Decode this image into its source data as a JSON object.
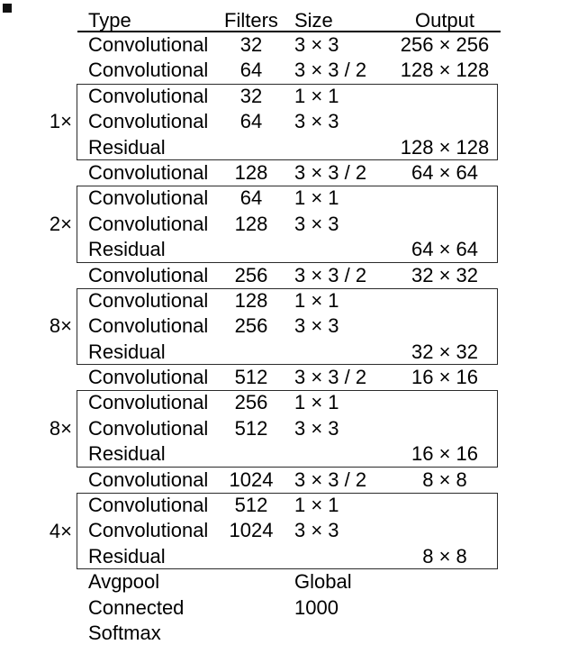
{
  "page": {
    "background": "#ffffff",
    "text_color": "#000000",
    "box_border_color": "#2b2b2b",
    "corner_artifact_color": "#111111"
  },
  "table": {
    "headers": {
      "type": "Type",
      "filters": "Filters",
      "size": "Size",
      "output": "Output"
    },
    "sections": [
      {
        "multiplier": "",
        "rows": [
          {
            "type": "Convolutional",
            "filters": "32",
            "size": "3 × 3",
            "output": "256 × 256"
          },
          {
            "type": "Convolutional",
            "filters": "64",
            "size": "3 × 3 / 2",
            "output": "128 × 128"
          }
        ]
      },
      {
        "multiplier": "1×",
        "rows": [
          {
            "type": "Convolutional",
            "filters": "32",
            "size": "1 × 1",
            "output": ""
          },
          {
            "type": "Convolutional",
            "filters": "64",
            "size": "3 × 3",
            "output": ""
          },
          {
            "type": "Residual",
            "filters": "",
            "size": "",
            "output": "128 × 128"
          }
        ]
      },
      {
        "multiplier": "",
        "rows": [
          {
            "type": "Convolutional",
            "filters": "128",
            "size": "3 × 3 / 2",
            "output": "64 × 64"
          }
        ]
      },
      {
        "multiplier": "2×",
        "rows": [
          {
            "type": "Convolutional",
            "filters": "64",
            "size": "1 × 1",
            "output": ""
          },
          {
            "type": "Convolutional",
            "filters": "128",
            "size": "3 × 3",
            "output": ""
          },
          {
            "type": "Residual",
            "filters": "",
            "size": "",
            "output": "64 × 64"
          }
        ]
      },
      {
        "multiplier": "",
        "rows": [
          {
            "type": "Convolutional",
            "filters": "256",
            "size": "3 × 3 / 2",
            "output": "32 × 32"
          }
        ]
      },
      {
        "multiplier": "8×",
        "rows": [
          {
            "type": "Convolutional",
            "filters": "128",
            "size": "1 × 1",
            "output": ""
          },
          {
            "type": "Convolutional",
            "filters": "256",
            "size": "3 × 3",
            "output": ""
          },
          {
            "type": "Residual",
            "filters": "",
            "size": "",
            "output": "32 × 32"
          }
        ]
      },
      {
        "multiplier": "",
        "rows": [
          {
            "type": "Convolutional",
            "filters": "512",
            "size": "3 × 3 / 2",
            "output": "16 × 16"
          }
        ]
      },
      {
        "multiplier": "8×",
        "rows": [
          {
            "type": "Convolutional",
            "filters": "256",
            "size": "1 × 1",
            "output": ""
          },
          {
            "type": "Convolutional",
            "filters": "512",
            "size": "3 × 3",
            "output": ""
          },
          {
            "type": "Residual",
            "filters": "",
            "size": "",
            "output": "16 × 16"
          }
        ]
      },
      {
        "multiplier": "",
        "rows": [
          {
            "type": "Convolutional",
            "filters": "1024",
            "size": "3 × 3 / 2",
            "output": "8 × 8"
          }
        ]
      },
      {
        "multiplier": "4×",
        "rows": [
          {
            "type": "Convolutional",
            "filters": "512",
            "size": "1 × 1",
            "output": ""
          },
          {
            "type": "Convolutional",
            "filters": "1024",
            "size": "3 × 3",
            "output": ""
          },
          {
            "type": "Residual",
            "filters": "",
            "size": "",
            "output": "8 × 8"
          }
        ]
      },
      {
        "multiplier": "",
        "rows": [
          {
            "type": "Avgpool",
            "filters": "",
            "size": "Global",
            "output": ""
          },
          {
            "type": "Connected",
            "filters": "",
            "size": "1000",
            "output": ""
          },
          {
            "type": "Softmax",
            "filters": "",
            "size": "",
            "output": ""
          }
        ]
      }
    ]
  }
}
